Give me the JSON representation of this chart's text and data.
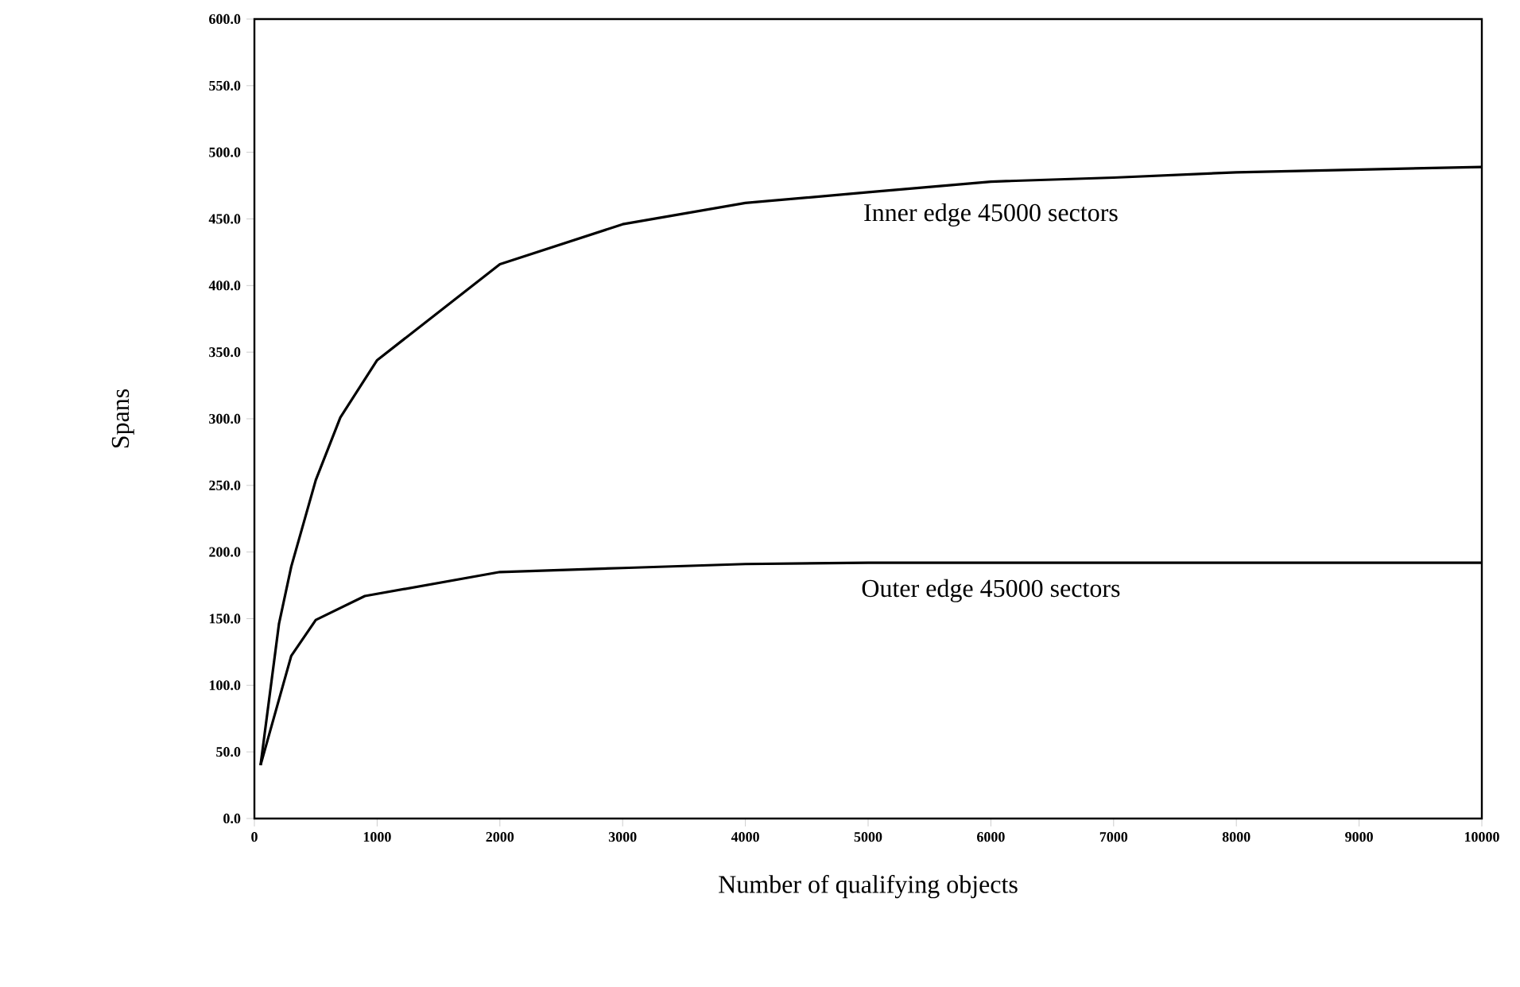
{
  "chart_data": {
    "type": "line",
    "xlabel": "Number of qualifying objects",
    "ylabel": "Spans",
    "xlim": [
      0,
      10000
    ],
    "xticks": [
      0,
      1000,
      2000,
      3000,
      4000,
      5000,
      6000,
      7000,
      8000,
      9000,
      10000
    ],
    "ylim": [
      0,
      600
    ],
    "yticks": [
      {
        "value": 0,
        "label": "0.0"
      },
      {
        "value": 50,
        "label": "50.0"
      },
      {
        "value": 100,
        "label": "100.0"
      },
      {
        "value": 150,
        "label": "150.0"
      },
      {
        "value": 200,
        "label": "200.0"
      },
      {
        "value": 250,
        "label": "250.0"
      },
      {
        "value": 300,
        "label": "300.0"
      },
      {
        "value": 350,
        "label": "350.0"
      },
      {
        "value": 400,
        "label": "400.0"
      },
      {
        "value": 450,
        "label": "450.0"
      },
      {
        "value": 500,
        "label": "500.0"
      },
      {
        "value": 550,
        "label": "550.0"
      },
      {
        "value": 600,
        "label": "600.0"
      }
    ],
    "grid": false,
    "legend": false,
    "marker": "none",
    "line_style": "solid",
    "series": [
      {
        "name": "Inner edge 45000 sectors",
        "color": "#000000",
        "x": [
          50,
          200,
          300,
          500,
          700,
          1000,
          2000,
          3000,
          4000,
          5000,
          6000,
          7000,
          8000,
          10000
        ],
        "values": [
          40,
          146,
          189,
          254,
          301,
          344,
          416,
          446,
          462,
          470,
          478,
          481,
          485,
          489
        ]
      },
      {
        "name": "Outer edge 45000 sectors",
        "color": "#000000",
        "x": [
          50,
          300,
          500,
          900,
          2000,
          3000,
          4000,
          5000,
          10000
        ],
        "values": [
          40,
          122,
          149,
          167,
          185,
          188,
          191,
          192,
          192
        ]
      }
    ]
  }
}
